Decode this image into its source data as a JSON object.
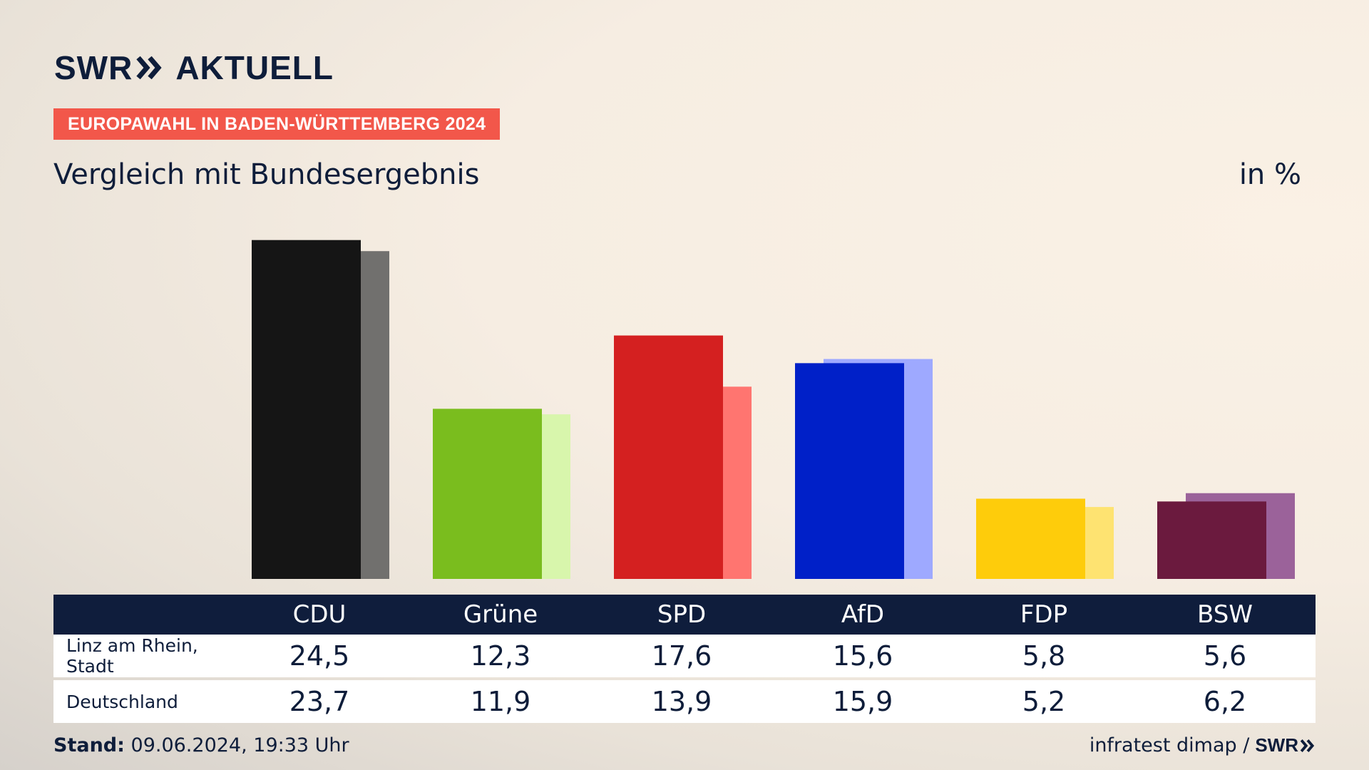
{
  "header": {
    "logo_swr": "SWR",
    "logo_aktuell": "AKTUELL",
    "badge": "EUROPAWAHL IN BADEN-WÜRTTEMBERG 2024",
    "subtitle": "Vergleich mit Bundesergebnis",
    "unit": "in %"
  },
  "colors": {
    "badge": "#f2574a",
    "table_header": "#0f1d3c",
    "text": "#0e1d3a"
  },
  "chart_data": {
    "type": "bar",
    "categories": [
      "CDU",
      "Grüne",
      "SPD",
      "AfD",
      "FDP",
      "BSW"
    ],
    "series": [
      {
        "name": "Linz am Rhein, Stadt",
        "values": [
          24.5,
          12.3,
          17.6,
          15.6,
          5.8,
          5.6
        ]
      },
      {
        "name": "Deutschland",
        "values": [
          23.7,
          11.9,
          13.9,
          15.9,
          5.2,
          6.2
        ]
      }
    ],
    "colors_primary": [
      "#151515",
      "#7abd1e",
      "#d42020",
      "#0020c8",
      "#fecc0b",
      "#6b1a3e"
    ],
    "colors_secondary": [
      "#71706e",
      "#d8f6ac",
      "#ff7570",
      "#9ea9ff",
      "#fee371",
      "#9b629a"
    ],
    "ylim": [
      0,
      25
    ],
    "grid": false
  },
  "table": {
    "headers": [
      "CDU",
      "Grüne",
      "SPD",
      "AfD",
      "FDP",
      "BSW"
    ],
    "rows": [
      {
        "label": "Linz am Rhein, Stadt",
        "values": [
          "24,5",
          "12,3",
          "17,6",
          "15,6",
          "5,8",
          "5,6"
        ]
      },
      {
        "label": "Deutschland",
        "values": [
          "23,7",
          "11,9",
          "13,9",
          "15,9",
          "5,2",
          "6,2"
        ]
      }
    ]
  },
  "footer": {
    "stand_label": "Stand:",
    "stand_value": "09.06.2024, 19:33 Uhr",
    "source": "infratest dimap /",
    "source_logo": "SWR"
  }
}
